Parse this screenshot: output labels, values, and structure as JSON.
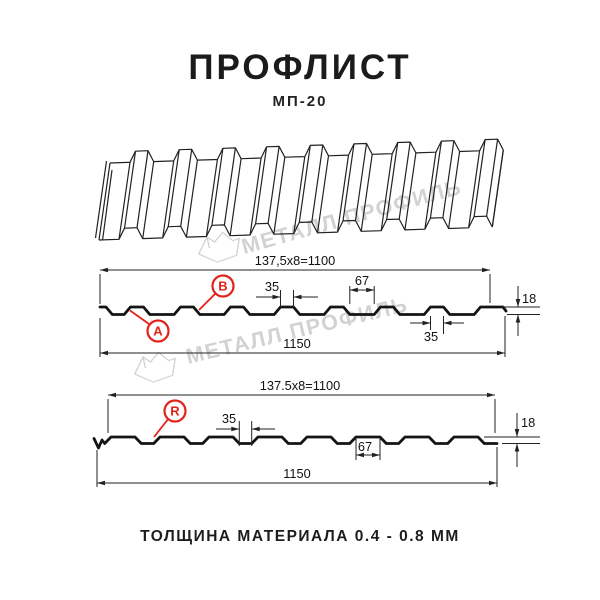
{
  "header": {
    "title": "ПРОФЛИСТ",
    "subtitle": "МП-20"
  },
  "footer": {
    "note": "ТОЛЩИНА МАТЕРИАЛА 0.4 - 0.8 ММ"
  },
  "watermark": {
    "brand": "МЕТАЛЛ ПРОФИЛЬ"
  },
  "colors": {
    "accent_red": "#e2231a",
    "line": "#141414",
    "watermark_gray": "#c7c7c7"
  },
  "profile_top": {
    "width_formula": "137,5x8=1100",
    "overall_width": "1150",
    "crest_top_width": "35",
    "pan_width": "67",
    "height": "18",
    "crest_top_width_right": "35",
    "marker_a": "A",
    "marker_b": "B"
  },
  "profile_bottom": {
    "width_formula": "137.5x8=1100",
    "overall_width": "1150",
    "valley_width": "35",
    "crest_top_width": "67",
    "height": "18",
    "marker_r": "R"
  }
}
